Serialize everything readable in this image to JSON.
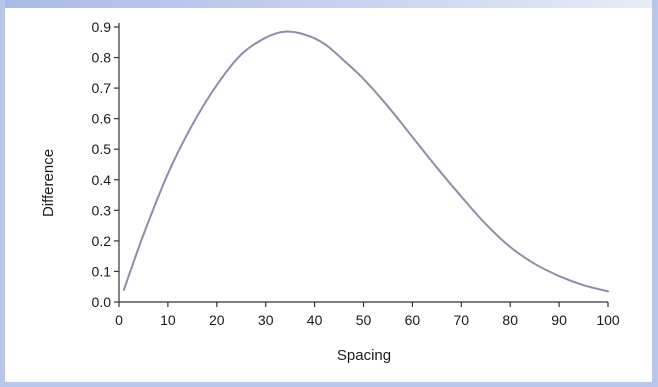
{
  "chart_data": {
    "type": "line",
    "title": "",
    "xlabel": "Spacing",
    "ylabel": "Difference",
    "xlim": [
      0,
      100
    ],
    "ylim": [
      0.0,
      0.9
    ],
    "xticks": [
      "0",
      "10",
      "20",
      "30",
      "40",
      "50",
      "60",
      "70",
      "80",
      "90",
      "100"
    ],
    "yticks": [
      "0.0",
      "0.1",
      "0.2",
      "0.3",
      "0.4",
      "0.5",
      "0.6",
      "0.7",
      "0.8",
      "0.9"
    ],
    "grid": false,
    "legend": "none",
    "series": [
      {
        "color": "#8e8ea8",
        "x": [
          1,
          5,
          10,
          15,
          20,
          25,
          30,
          34,
          38,
          42,
          46,
          50,
          55,
          60,
          65,
          70,
          75,
          80,
          85,
          90,
          95,
          100
        ],
        "y": [
          0.04,
          0.22,
          0.42,
          0.58,
          0.71,
          0.81,
          0.865,
          0.885,
          0.875,
          0.845,
          0.79,
          0.73,
          0.64,
          0.54,
          0.44,
          0.345,
          0.255,
          0.18,
          0.125,
          0.085,
          0.055,
          0.035
        ]
      }
    ]
  }
}
